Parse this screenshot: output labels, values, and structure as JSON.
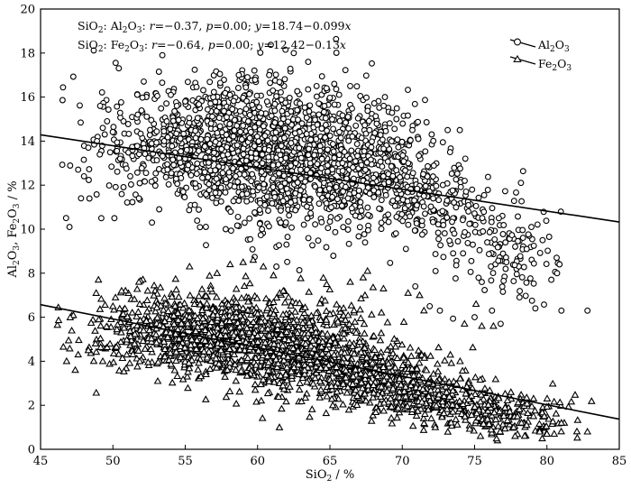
{
  "chart_data": {
    "type": "scatter",
    "xlabel": {
      "base": "SiO",
      "sub": "2",
      "tail": " / %"
    },
    "ylabel": {
      "parts": [
        "Al",
        "2",
        "O",
        "3",
        ", Fe",
        "2",
        "O",
        "3",
        " / %"
      ]
    },
    "xlim": [
      45,
      85
    ],
    "ylim": [
      0,
      20
    ],
    "xticks": [
      45,
      50,
      55,
      60,
      65,
      70,
      75,
      80,
      85
    ],
    "yticks": [
      0,
      2,
      4,
      6,
      8,
      10,
      12,
      14,
      16,
      18,
      20
    ],
    "grid": false,
    "legend_position": "top-right",
    "annotations": [
      {
        "pre": "SiO",
        "pre_sub": "2",
        "mid1": ": Al",
        "mid1_sub": "2",
        "mid2": "O",
        "mid2_sub": "3",
        "r_label": "r",
        "r_text": "=−0.37, ",
        "p_label": "p",
        "p_text": "=0.00; ",
        "y_label": "y",
        "eq_text": "=18.74−0.099",
        "x_label": "x"
      },
      {
        "pre": "SiO",
        "pre_sub": "2",
        "mid1": ": Fe",
        "mid1_sub": "2",
        "mid2": "O",
        "mid2_sub": "3",
        "r_label": "r",
        "r_text": "=−0.64, ",
        "p_label": "p",
        "p_text": "=0.00; ",
        "y_label": "y",
        "eq_text": "=12.42−0.13",
        "x_label": "x"
      }
    ],
    "series": [
      {
        "name": {
          "a": "Al",
          "a_sub": "2",
          "b": "O",
          "b_sub": "3"
        },
        "marker": "circle",
        "regression": {
          "intercept": 18.74,
          "slope": -0.099,
          "x_range": [
            45,
            85
          ]
        },
        "clusters": [
          {
            "cx": 57.5,
            "cy": 13.8,
            "sx": 4.5,
            "sy": 1.4,
            "n": 900
          },
          {
            "cx": 62.5,
            "cy": 13.2,
            "sx": 3.5,
            "sy": 1.8,
            "n": 700
          },
          {
            "cx": 68.0,
            "cy": 12.8,
            "sx": 2.2,
            "sy": 1.3,
            "n": 320
          },
          {
            "cx": 72.5,
            "cy": 11.2,
            "sx": 2.0,
            "sy": 1.0,
            "n": 160
          },
          {
            "cx": 77.0,
            "cy": 9.0,
            "sx": 2.0,
            "sy": 1.2,
            "n": 110
          }
        ],
        "points": [
          [
            47.0,
            10.1
          ],
          [
            47.6,
            12.7
          ],
          [
            47.8,
            11.4
          ],
          [
            48.0,
            12.4
          ],
          [
            48.3,
            13.7
          ],
          [
            48.9,
            14.0
          ],
          [
            49.2,
            10.5
          ],
          [
            49.3,
            14.6
          ],
          [
            49.6,
            14.9
          ],
          [
            50.1,
            10.5
          ],
          [
            50.5,
            13.2
          ],
          [
            51.2,
            12.4
          ],
          [
            51.8,
            11.4
          ],
          [
            52.7,
            10.3
          ],
          [
            53.2,
            10.9
          ],
          [
            54.0,
            16.1
          ],
          [
            55.0,
            15.8
          ],
          [
            57.8,
            10.0
          ],
          [
            58.7,
            17.0
          ],
          [
            59.3,
            16.9
          ],
          [
            60.3,
            10.0
          ],
          [
            60.8,
            17.0
          ],
          [
            61.3,
            8.3
          ],
          [
            61.6,
            10.3
          ],
          [
            62.0,
            9.3
          ],
          [
            62.5,
            18.0
          ],
          [
            63.5,
            17.6
          ],
          [
            63.2,
            10.2
          ],
          [
            65.3,
            16.6
          ],
          [
            66.4,
            16.5
          ],
          [
            68.8,
            16.0
          ],
          [
            69.6,
            15.0
          ],
          [
            70.7,
            14.5
          ],
          [
            71.5,
            11.5
          ],
          [
            70.9,
            7.4
          ],
          [
            71.9,
            6.5
          ],
          [
            72.3,
            8.1
          ],
          [
            72.6,
            6.3
          ],
          [
            73.1,
            11.3
          ],
          [
            73.6,
            9.8
          ],
          [
            74.2,
            8.9
          ],
          [
            75.0,
            6.0
          ],
          [
            75.5,
            7.6
          ],
          [
            76.2,
            6.3
          ],
          [
            76.8,
            5.7
          ],
          [
            77.2,
            8.5
          ],
          [
            78.1,
            6.9
          ],
          [
            78.6,
            9.1
          ],
          [
            79.2,
            6.4
          ],
          [
            79.7,
            9.5
          ],
          [
            80.3,
            7.7
          ],
          [
            80.7,
            8.0
          ],
          [
            81.0,
            6.3
          ],
          [
            82.8,
            6.3
          ]
        ]
      },
      {
        "name": {
          "a": "Fe",
          "a_sub": "2",
          "b": "O",
          "b_sub": "3"
        },
        "marker": "triangle",
        "regression": {
          "intercept": 12.42,
          "slope": -0.13,
          "x_range": [
            45,
            85
          ]
        },
        "clusters": [
          {
            "cx": 56.5,
            "cy": 5.3,
            "sx": 3.8,
            "sy": 0.9,
            "n": 900
          },
          {
            "cx": 62.0,
            "cy": 4.5,
            "sx": 3.0,
            "sy": 1.0,
            "n": 650
          },
          {
            "cx": 67.5,
            "cy": 3.4,
            "sx": 2.3,
            "sy": 0.8,
            "n": 380
          },
          {
            "cx": 72.0,
            "cy": 2.4,
            "sx": 2.0,
            "sy": 0.6,
            "n": 260
          },
          {
            "cx": 77.0,
            "cy": 1.6,
            "sx": 2.2,
            "sy": 0.5,
            "n": 200
          }
        ],
        "points": [
          [
            46.8,
            4.0
          ],
          [
            47.4,
            3.6
          ],
          [
            47.6,
            4.3
          ],
          [
            48.3,
            4.5
          ],
          [
            48.8,
            4.8
          ],
          [
            49.0,
            7.7
          ],
          [
            49.3,
            4.0
          ],
          [
            50.0,
            6.5
          ],
          [
            50.6,
            7.2
          ],
          [
            51.8,
            7.6
          ],
          [
            52.4,
            7.2
          ],
          [
            55.3,
            8.3
          ],
          [
            57.2,
            8.0
          ],
          [
            58.1,
            8.4
          ],
          [
            59.0,
            8.5
          ],
          [
            59.7,
            8.6
          ],
          [
            60.4,
            8.3
          ],
          [
            61.1,
            7.9
          ],
          [
            64.8,
            2.4
          ],
          [
            65.2,
            2.0
          ],
          [
            66.4,
            7.6
          ],
          [
            67.3,
            7.8
          ],
          [
            67.6,
            8.1
          ],
          [
            68.7,
            7.3
          ],
          [
            70.4,
            7.1
          ],
          [
            71.2,
            7.0
          ],
          [
            71.5,
            6.3
          ],
          [
            72.0,
            1.4
          ],
          [
            73.5,
            1.7
          ],
          [
            74.3,
            5.7
          ],
          [
            75.1,
            6.6
          ],
          [
            75.5,
            5.6
          ],
          [
            76.3,
            5.6
          ],
          [
            77.7,
            1.0
          ],
          [
            78.6,
            1.1
          ],
          [
            79.5,
            0.8
          ],
          [
            80.0,
            0.7
          ],
          [
            80.5,
            0.7
          ],
          [
            81.0,
            1.2
          ],
          [
            82.8,
            0.8
          ]
        ]
      }
    ]
  }
}
